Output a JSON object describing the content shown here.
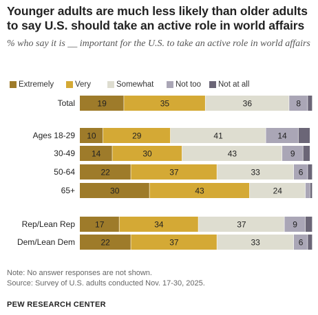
{
  "title": "Younger adults are much less likely than older adults to say U.S. should take an active role in world affairs",
  "subtitle": "% who say it is __ important for the U.S. to take an active role in world affairs",
  "note": "Note: No answer responses are not shown.",
  "source": "Source: Survey of U.S. adults conducted Nov. 17-30, 2025.",
  "org": "PEW RESEARCH CENTER",
  "colors": {
    "Extremely": "#9e7b2a",
    "Very": "#d4a935",
    "Somewhat": "#deddd0",
    "Not too": "#aaa6b6",
    "Not at all": "#6b6677"
  },
  "chart_data": {
    "type": "bar",
    "orientation": "horizontal",
    "stacked": true,
    "xlim": [
      0,
      100
    ],
    "categories": [
      "Total",
      "Ages 18-29",
      "30-49",
      "50-64",
      "65+",
      "Rep/Lean Rep",
      "Dem/Lean Dem"
    ],
    "legend_position": "top",
    "series": [
      {
        "name": "Extremely",
        "values": [
          19,
          10,
          14,
          22,
          30,
          17,
          22
        ],
        "labels": [
          "19",
          "10",
          "14",
          "22",
          "30",
          "17",
          "22"
        ]
      },
      {
        "name": "Very",
        "values": [
          35,
          29,
          30,
          37,
          43,
          34,
          37
        ],
        "labels": [
          "35",
          "29",
          "30",
          "37",
          "43",
          "34",
          "37"
        ]
      },
      {
        "name": "Somewhat",
        "values": [
          36,
          41,
          43,
          33,
          24,
          37,
          33
        ],
        "labels": [
          "36",
          "41",
          "43",
          "33",
          "24",
          "37",
          "33"
        ]
      },
      {
        "name": "Not too",
        "values": [
          8,
          14,
          9,
          6,
          2,
          9,
          6
        ],
        "labels": [
          "8",
          "14",
          "9",
          "6",
          "",
          "9",
          "6"
        ]
      },
      {
        "name": "Not at all",
        "values": [
          2,
          5,
          3,
          2,
          1,
          3,
          2
        ],
        "labels": [
          "",
          "",
          "",
          "",
          "",
          "",
          ""
        ]
      }
    ]
  }
}
